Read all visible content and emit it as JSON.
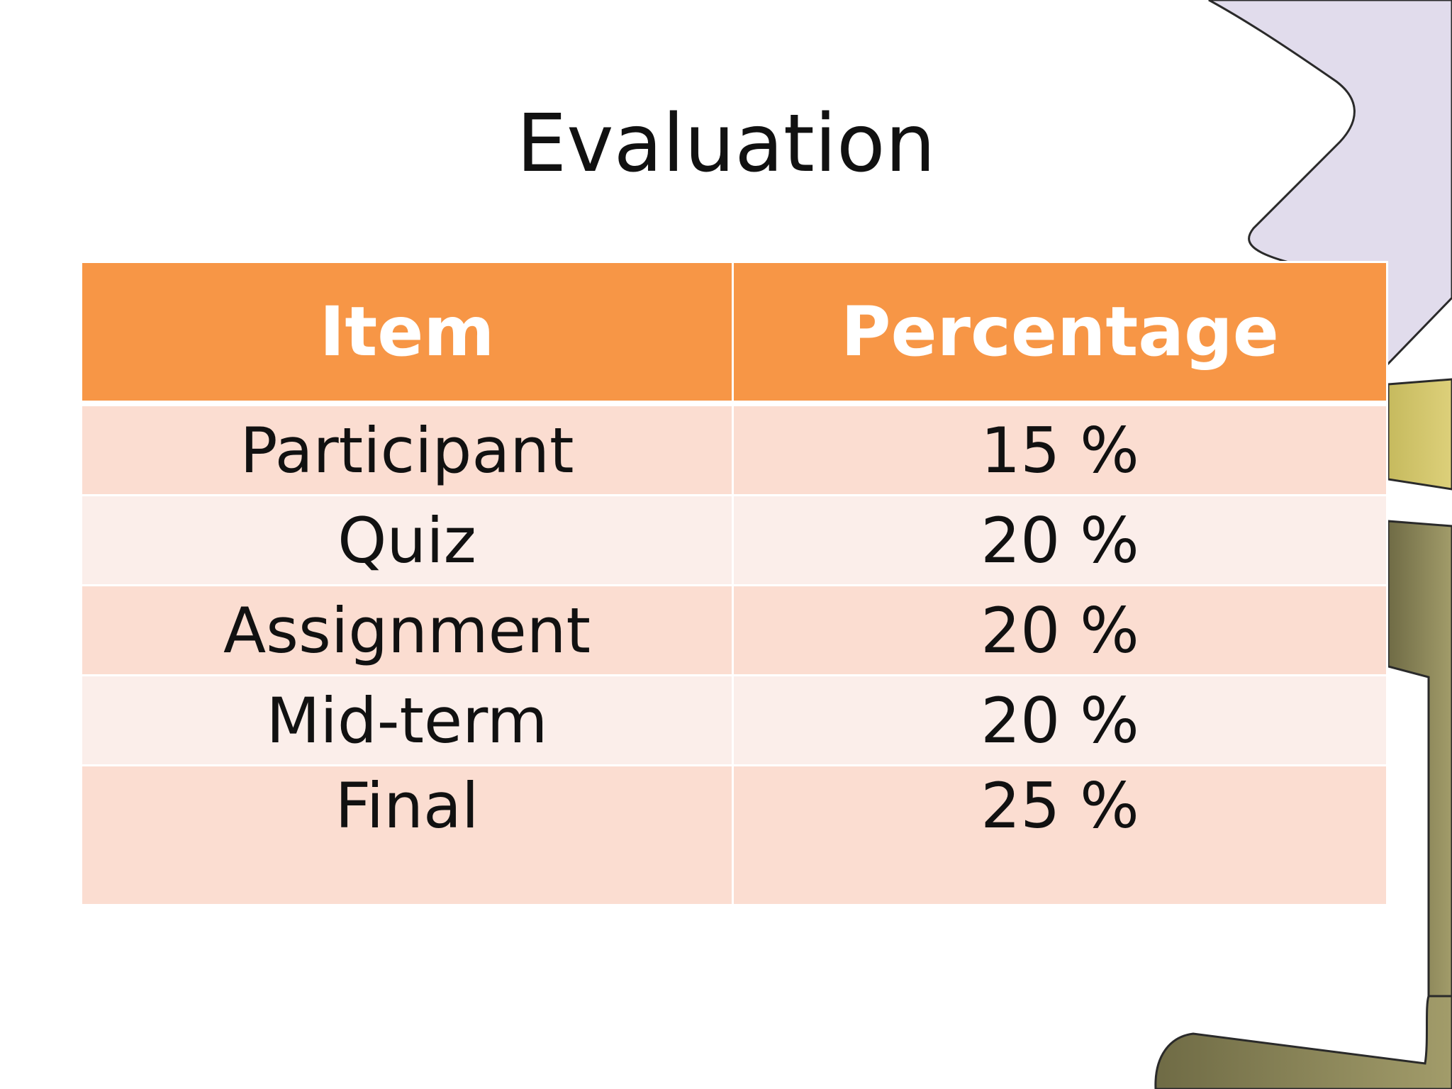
{
  "slide": {
    "title": "Evaluation"
  },
  "table": {
    "headers": [
      "Item",
      "Percentage"
    ],
    "rows": [
      {
        "item": "Participant",
        "percentage": "15 %"
      },
      {
        "item": "Quiz",
        "percentage": "20 %"
      },
      {
        "item": "Assignment",
        "percentage": "20 %"
      },
      {
        "item": "Mid-term",
        "percentage": "20 %"
      },
      {
        "item": "Final",
        "percentage": "25 %"
      }
    ]
  },
  "colors": {
    "header_fill": "#f79646",
    "row_odd_fill": "#fbddd1",
    "row_even_fill": "#fbeeea",
    "decor_lavender": "#e1dcec",
    "decor_olive": "#8a8552"
  }
}
